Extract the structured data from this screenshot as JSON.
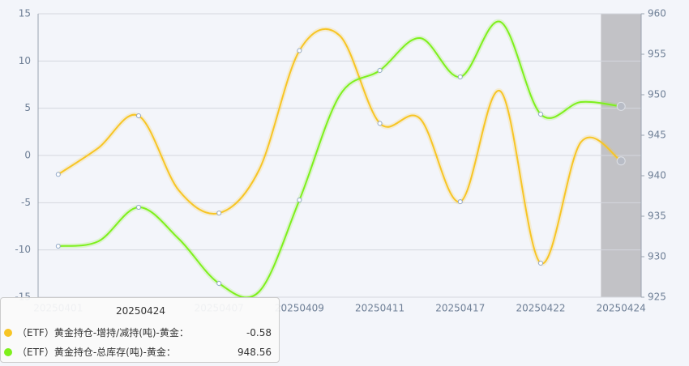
{
  "chart_data": {
    "type": "line",
    "categories": [
      "20250401",
      null,
      null,
      null,
      "20250407",
      null,
      "20250409",
      null,
      "20250411",
      null,
      "20250417",
      null,
      "20250422",
      null,
      "20250424"
    ],
    "series": [
      {
        "name": "（ETF）黄金持仓-增持/减持(吨)-黄金：",
        "color": "#f7c525",
        "axis": "y",
        "values": [
          -2.0,
          0.8,
          4.2,
          -3.7,
          -6.1,
          -1.5,
          11.1,
          12.7,
          3.4,
          3.9,
          -4.9,
          6.8,
          -11.4,
          1.4,
          -0.58
        ]
      },
      {
        "name": "（ETF）黄金持仓-总库存(吨)-黄金：",
        "color": "#7ef01c",
        "axis": "y2",
        "values": [
          931.3,
          931.9,
          936.1,
          932.2,
          926.7,
          925.7,
          937.0,
          949.9,
          953.0,
          957.0,
          952.2,
          959.0,
          947.6,
          949.1,
          948.56
        ]
      }
    ],
    "ylim": [
      -15,
      15
    ],
    "yticks": [
      -15,
      -10,
      -5,
      0,
      5,
      10,
      15
    ],
    "y2lim": [
      925,
      960
    ],
    "y2ticks": [
      925,
      930,
      935,
      940,
      945,
      950,
      955,
      960
    ],
    "grid": true,
    "highlight_index": 14
  }
}
